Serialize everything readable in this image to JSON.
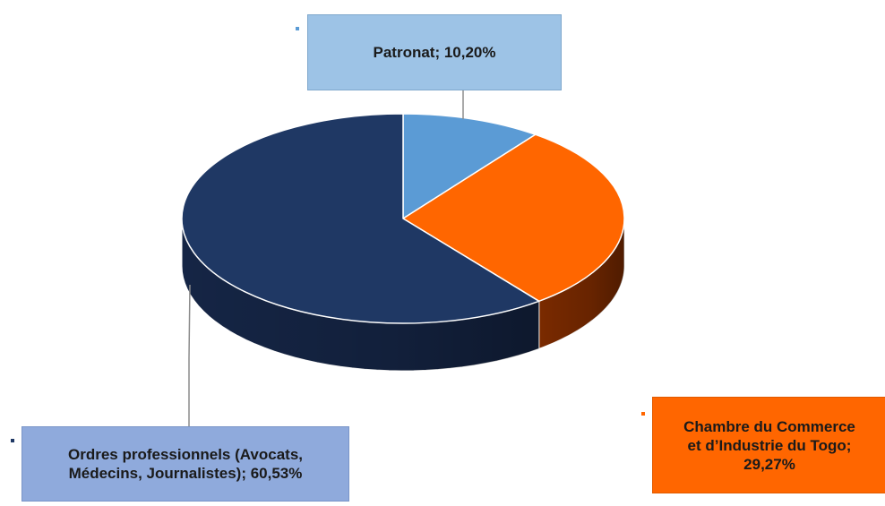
{
  "chart_data": {
    "type": "pie",
    "style": "3d",
    "slices": [
      {
        "label": "Patronat; 10,20%",
        "name": "Patronat",
        "value": 10.2,
        "color": "#5b9bd5",
        "side_color": "#2e6aa8"
      },
      {
        "label": "Chambre du Commerce\net d’Industrie du Togo;\n29,27%",
        "name": "Chambre du Commerce et d’Industrie du Togo",
        "value": 29.27,
        "color": "#ff6600",
        "side_color": "#7a2a00"
      },
      {
        "label": "Ordres professionnels (Avocats,\nMédecins, Journalistes); 60,53%",
        "name": "Ordres professionnels (Avocats, Médecins, Journalistes)",
        "value": 60.53,
        "color": "#1f3864",
        "side_color": "#152545"
      }
    ],
    "label_colors": {
      "Patronat": "#9dc3e6",
      "Chambre": "#ff6600",
      "Ordres": "#8faadc"
    },
    "leader_line_color": "#8c8c8c"
  }
}
